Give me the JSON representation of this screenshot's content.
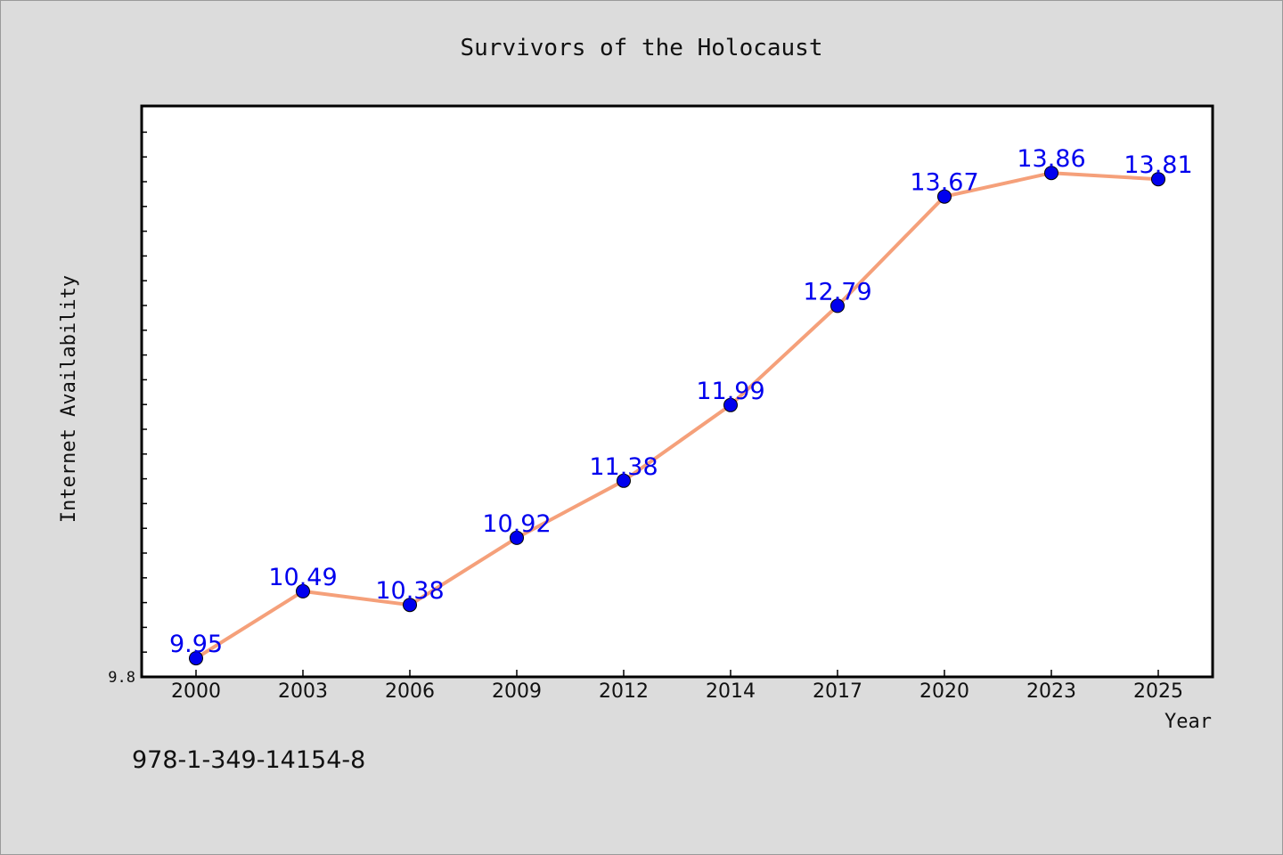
{
  "chart_data": {
    "type": "line",
    "title": "Survivors of the Holocaust",
    "xlabel": "Year",
    "ylabel": "Internet Availability",
    "categories": [
      "2000",
      "2003",
      "2006",
      "2009",
      "2012",
      "2014",
      "2017",
      "2020",
      "2023",
      "2025"
    ],
    "series": [
      {
        "values": [
          9.95,
          10.49,
          10.38,
          10.92,
          11.38,
          11.99,
          12.79,
          13.67,
          13.86,
          13.81
        ],
        "labels": [
          "9.95",
          "10.49",
          "10.38",
          "10.92",
          "11.38",
          "11.99",
          "12.79",
          "13.67",
          "13.86",
          "13.81"
        ]
      }
    ],
    "ylim": [
      9.8,
      14.4
    ],
    "yticks": [
      9.8
    ],
    "ytick_labels": [
      "9.8"
    ],
    "grid": false,
    "line_color": "#f5a07a",
    "marker_color": "#0000ee",
    "label_color": "#0000ee",
    "plot_background": "#ffffff",
    "page_background": "#dcdcdc"
  },
  "footer": {
    "isbn": "978-1-349-14154-8"
  }
}
